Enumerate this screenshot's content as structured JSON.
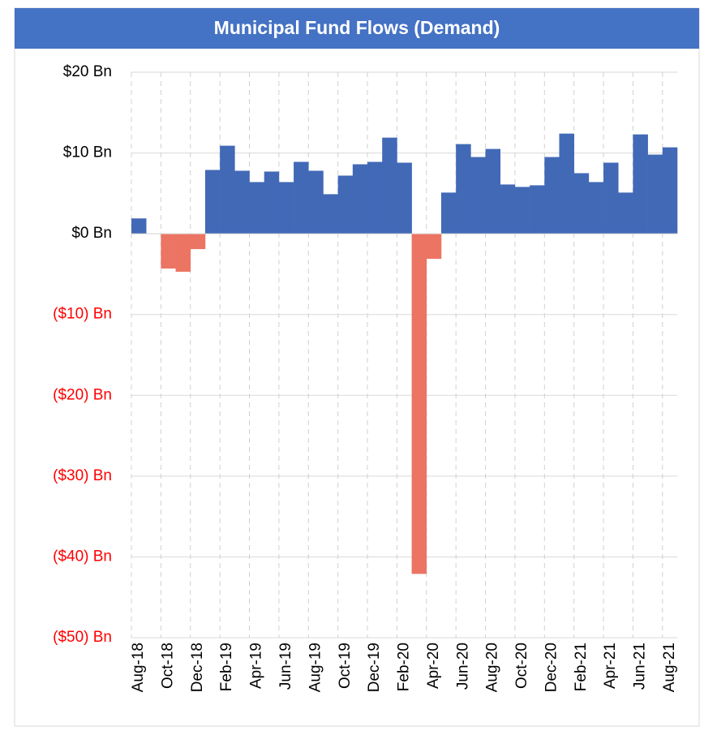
{
  "chart_data": {
    "type": "bar",
    "title": "Municipal Fund Flows (Demand)",
    "categories": [
      "Aug-18",
      null,
      "Oct-18",
      null,
      "Dec-18",
      null,
      "Feb-19",
      null,
      "Apr-19",
      null,
      "Jun-19",
      null,
      "Aug-19",
      null,
      "Oct-19",
      null,
      "Dec-19",
      null,
      "Feb-20",
      null,
      "Apr-20",
      null,
      "Jun-20",
      null,
      "Aug-20",
      null,
      "Oct-20",
      null,
      "Dec-20",
      null,
      "Feb-21",
      null,
      "Apr-21",
      null,
      "Jun-21",
      null,
      "Aug-21"
    ],
    "values": [
      1.9,
      0,
      -4.3,
      -4.7,
      -1.9,
      7.9,
      10.9,
      7.8,
      6.4,
      7.7,
      6.4,
      8.9,
      7.8,
      4.9,
      7.2,
      8.6,
      8.9,
      11.9,
      8.8,
      -42.1,
      -3.1,
      5.1,
      11.1,
      9.5,
      10.5,
      6.1,
      5.8,
      6.0,
      9.5,
      12.4,
      7.5,
      6.4,
      8.8,
      5.1,
      12.3,
      9.8,
      10.7
    ],
    "positive_color": "#4169b6",
    "negative_color": "#ec7462",
    "negative_label_color": "#ff0000",
    "title_background": "#4472c4",
    "ylim": [
      -50,
      20
    ],
    "yticks": [
      {
        "value": -50,
        "label": "($50) Bn"
      },
      {
        "value": -40,
        "label": "($40) Bn"
      },
      {
        "value": -30,
        "label": "($30) Bn"
      },
      {
        "value": -20,
        "label": "($20) Bn"
      },
      {
        "value": -10,
        "label": "($10) Bn"
      },
      {
        "value": 0,
        "label": "$0 Bn"
      },
      {
        "value": 10,
        "label": "$10 Bn"
      },
      {
        "value": 20,
        "label": "$20 Bn"
      }
    ],
    "grid": true
  }
}
